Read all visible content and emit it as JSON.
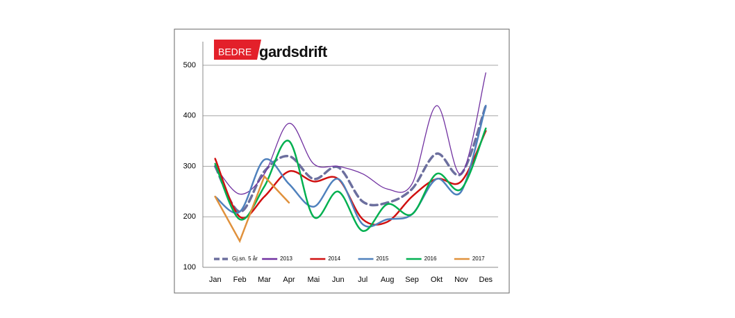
{
  "chart_data": {
    "type": "line",
    "logo": {
      "brand": "BEDRE",
      "name": "gardsdrift"
    },
    "categories": [
      "Jan",
      "Feb",
      "Mar",
      "Apr",
      "Mai",
      "Jun",
      "Jul",
      "Aug",
      "Sep",
      "Okt",
      "Nov",
      "Des"
    ],
    "series": [
      {
        "name": "Gj.sn. 5 år",
        "color": "#6c6f9e",
        "dashed": true,
        "smooth": true,
        "values": [
          300,
          210,
          290,
          320,
          275,
          298,
          230,
          228,
          255,
          325,
          285,
          420
        ]
      },
      {
        "name": "2013",
        "color": "#7030a0",
        "dashed": false,
        "smooth": true,
        "values": [
          300,
          245,
          285,
          385,
          305,
          300,
          285,
          255,
          265,
          420,
          285,
          485
        ]
      },
      {
        "name": "2014",
        "color": "#d01010",
        "dashed": false,
        "smooth": true,
        "values": [
          315,
          200,
          240,
          290,
          270,
          275,
          195,
          190,
          240,
          275,
          270,
          370
        ]
      },
      {
        "name": "2015",
        "color": "#4f81bd",
        "dashed": false,
        "smooth": true,
        "values": [
          240,
          210,
          313,
          265,
          220,
          275,
          185,
          195,
          205,
          275,
          250,
          420
        ]
      },
      {
        "name": "2016",
        "color": "#00b050",
        "dashed": false,
        "smooth": true,
        "values": [
          305,
          195,
          260,
          350,
          200,
          250,
          172,
          225,
          205,
          285,
          255,
          375
        ]
      },
      {
        "name": "2017",
        "color": "#e0913c",
        "dashed": false,
        "smooth": false,
        "values": [
          240,
          152,
          280,
          228,
          null,
          null,
          null,
          null,
          null,
          null,
          null,
          null
        ]
      }
    ],
    "ylim": [
      100,
      500
    ],
    "yticks": [
      100,
      200,
      300,
      400,
      500
    ],
    "grid": true,
    "legend": "bottom"
  }
}
